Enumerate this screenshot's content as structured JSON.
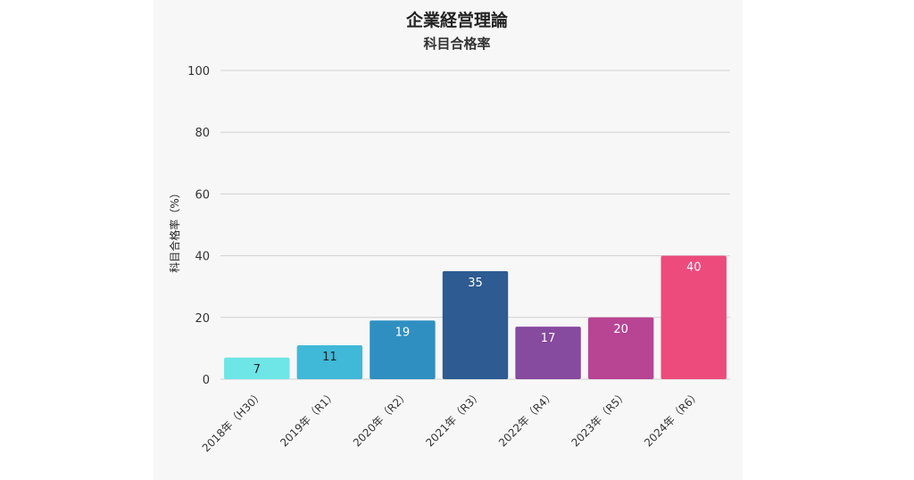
{
  "chart_data": {
    "type": "bar",
    "title": "企業経営理論",
    "subtitle": "科目合格率",
    "xlabel": "",
    "ylabel": "科目合格率（%）",
    "ylim": [
      0,
      100
    ],
    "yticks": [
      "0",
      "20",
      "40",
      "60",
      "80",
      "100"
    ],
    "grid": true,
    "categories": [
      "2018年（H30）",
      "2019年（R1）",
      "2020年（R2）",
      "2021年（R3）",
      "2022年（R4）",
      "2023年（R5）",
      "2024年（R6）"
    ],
    "values": [
      7,
      11,
      19,
      35,
      17,
      20,
      40
    ],
    "data_labels": [
      "7",
      "11",
      "19",
      "35",
      "17",
      "20",
      "40"
    ],
    "colors": [
      "#6ee5e6",
      "#40b8d8",
      "#2f8fc0",
      "#2d5b92",
      "#864a9e",
      "#b84494",
      "#ec4b7c"
    ],
    "label_colors": [
      "#222222",
      "#222222",
      "#ffffff",
      "#ffffff",
      "#ffffff",
      "#ffffff",
      "#ffffff"
    ]
  }
}
